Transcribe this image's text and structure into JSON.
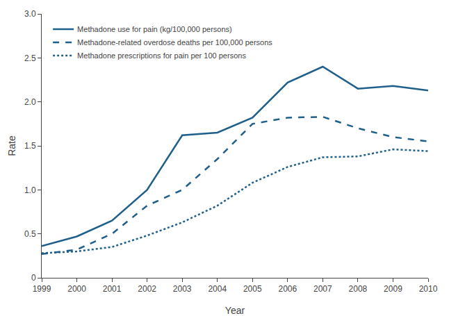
{
  "chart_data": {
    "type": "line",
    "xlabel": "Year",
    "ylabel": "Rate",
    "x": [
      1999,
      2000,
      2001,
      2002,
      2003,
      2004,
      2005,
      2006,
      2007,
      2008,
      2009,
      2010
    ],
    "series": [
      {
        "name": "Methadone use for pain (kg/100,000 persons)",
        "color": "#1f5f8b",
        "line_style": "solid",
        "values": [
          0.36,
          0.47,
          0.65,
          1.0,
          1.62,
          1.65,
          1.82,
          2.22,
          2.4,
          2.15,
          2.18,
          2.13
        ]
      },
      {
        "name": "Methadone-related overdose deaths per 100,000 persons",
        "color": "#1f5f8b",
        "line_style": "dashed",
        "values": [
          0.27,
          0.32,
          0.5,
          0.82,
          1.0,
          1.35,
          1.75,
          1.82,
          1.83,
          1.7,
          1.6,
          1.55
        ]
      },
      {
        "name": "Methadone prescriptions for pain per 100 persons",
        "color": "#1f5f8b",
        "line_style": "dotted",
        "values": [
          0.28,
          0.3,
          0.35,
          0.48,
          0.63,
          0.82,
          1.08,
          1.26,
          1.37,
          1.38,
          1.46,
          1.44
        ]
      }
    ],
    "xlim": [
      1999,
      2010
    ],
    "xticks": [
      1999,
      2000,
      2001,
      2002,
      2003,
      2004,
      2005,
      2006,
      2007,
      2008,
      2009,
      2010
    ],
    "ylim": [
      0,
      3.0
    ],
    "yticks": [
      0,
      0.5,
      {
        "value": 1.0,
        "label": "1.0"
      },
      1.5,
      {
        "value": 2.0,
        "label": "2.0"
      },
      2.5,
      {
        "value": 3.0,
        "label": "3.0"
      }
    ],
    "grid": false,
    "legend": "upper left"
  }
}
